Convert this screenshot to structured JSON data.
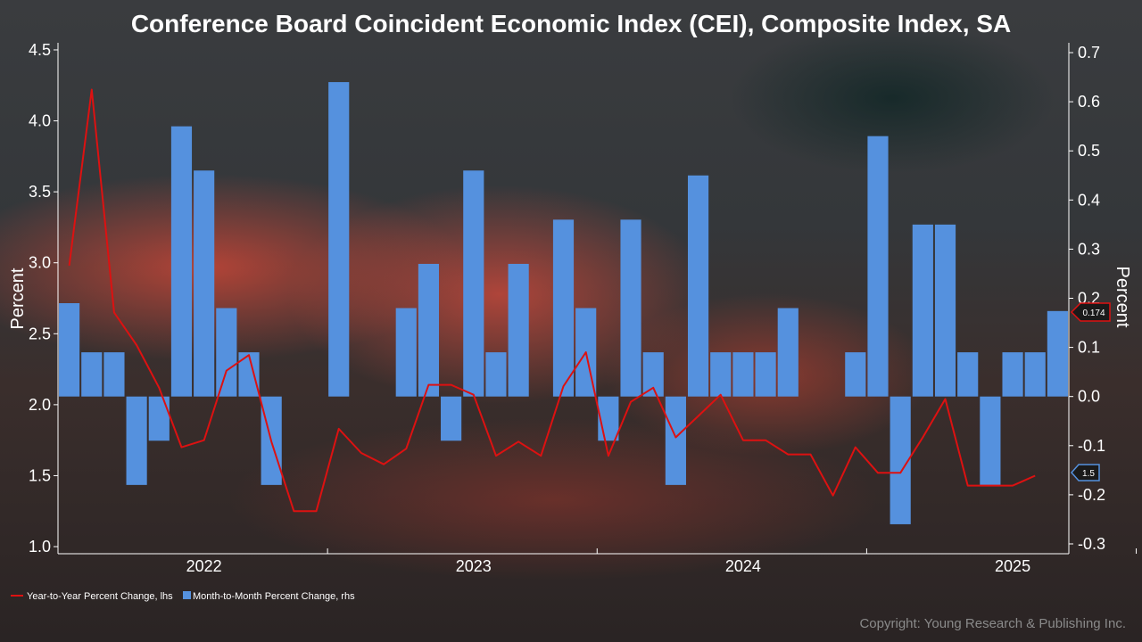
{
  "chart_data": {
    "type": "bar",
    "title": "Conference Board Coincident Economic Index (CEI), Composite Index, SA",
    "ylabel_left": "Percent",
    "ylabel_right": "Percent",
    "ylim_left": [
      0.95,
      4.55
    ],
    "ylim_right": [
      -0.32,
      0.72
    ],
    "yticks_left": [
      "1.0",
      "1.5",
      "2.0",
      "2.5",
      "3.0",
      "3.5",
      "4.0",
      "4.5"
    ],
    "yticks_left_values": [
      1.0,
      1.5,
      2.0,
      2.5,
      3.0,
      3.5,
      4.0,
      4.5
    ],
    "yticks_right": [
      "-0.3",
      "-0.2",
      "-0.1",
      "0.0",
      "0.1",
      "0.2",
      "0.3",
      "0.4",
      "0.5",
      "0.6",
      "0.7"
    ],
    "yticks_right_values": [
      -0.3,
      -0.2,
      -0.1,
      0.0,
      0.1,
      0.2,
      0.3,
      0.4,
      0.5,
      0.6,
      0.7
    ],
    "xticks": [
      "2022",
      "2023",
      "2024",
      "2025"
    ],
    "xtick_month_index": [
      12,
      24,
      36,
      48
    ],
    "start_month": "2021-07",
    "n_months": 45,
    "series": [
      {
        "name": "Year-to-Year Percent Change, lhs",
        "type": "line",
        "axis": "left",
        "color": "#dd1111",
        "values": [
          2.98,
          4.22,
          2.65,
          2.42,
          2.12,
          1.7,
          1.75,
          2.24,
          2.35,
          1.74,
          1.25,
          1.25,
          1.83,
          1.66,
          1.58,
          1.69,
          2.14,
          2.14,
          2.07,
          1.64,
          1.74,
          1.64,
          2.13,
          2.37,
          1.64,
          2.02,
          2.12,
          1.77,
          1.92,
          2.07,
          1.75,
          1.75,
          1.65,
          1.65,
          1.36,
          1.7,
          1.52,
          1.52,
          1.77,
          2.04,
          1.43,
          1.43,
          1.43,
          1.5,
          null
        ],
        "last_label": "1.5"
      },
      {
        "name": "Month-to-Month Percent Change, rhs",
        "type": "bar",
        "axis": "right",
        "color": "#5591de",
        "values": [
          0.19,
          0.09,
          0.09,
          -0.18,
          -0.09,
          0.55,
          0.46,
          0.18,
          0.09,
          -0.18,
          null,
          null,
          0.64,
          null,
          null,
          0.18,
          0.27,
          -0.09,
          0.46,
          0.09,
          0.27,
          null,
          0.36,
          0.18,
          -0.09,
          0.36,
          0.09,
          -0.18,
          0.45,
          0.09,
          0.09,
          0.09,
          0.18,
          null,
          null,
          0.09,
          0.53,
          -0.26,
          0.35,
          0.35,
          0.09,
          -0.18,
          0.09,
          0.09,
          0.174
        ],
        "last_label": "0.174"
      }
    ],
    "legend": [
      {
        "label": "Year-to-Year Percent Change, lhs",
        "color": "#dd1111",
        "kind": "line"
      },
      {
        "label": "Month-to-Month Percent Change, rhs",
        "color": "#5591de",
        "kind": "bar"
      }
    ]
  },
  "copyright": "Copyright: Young Research & Publishing Inc."
}
